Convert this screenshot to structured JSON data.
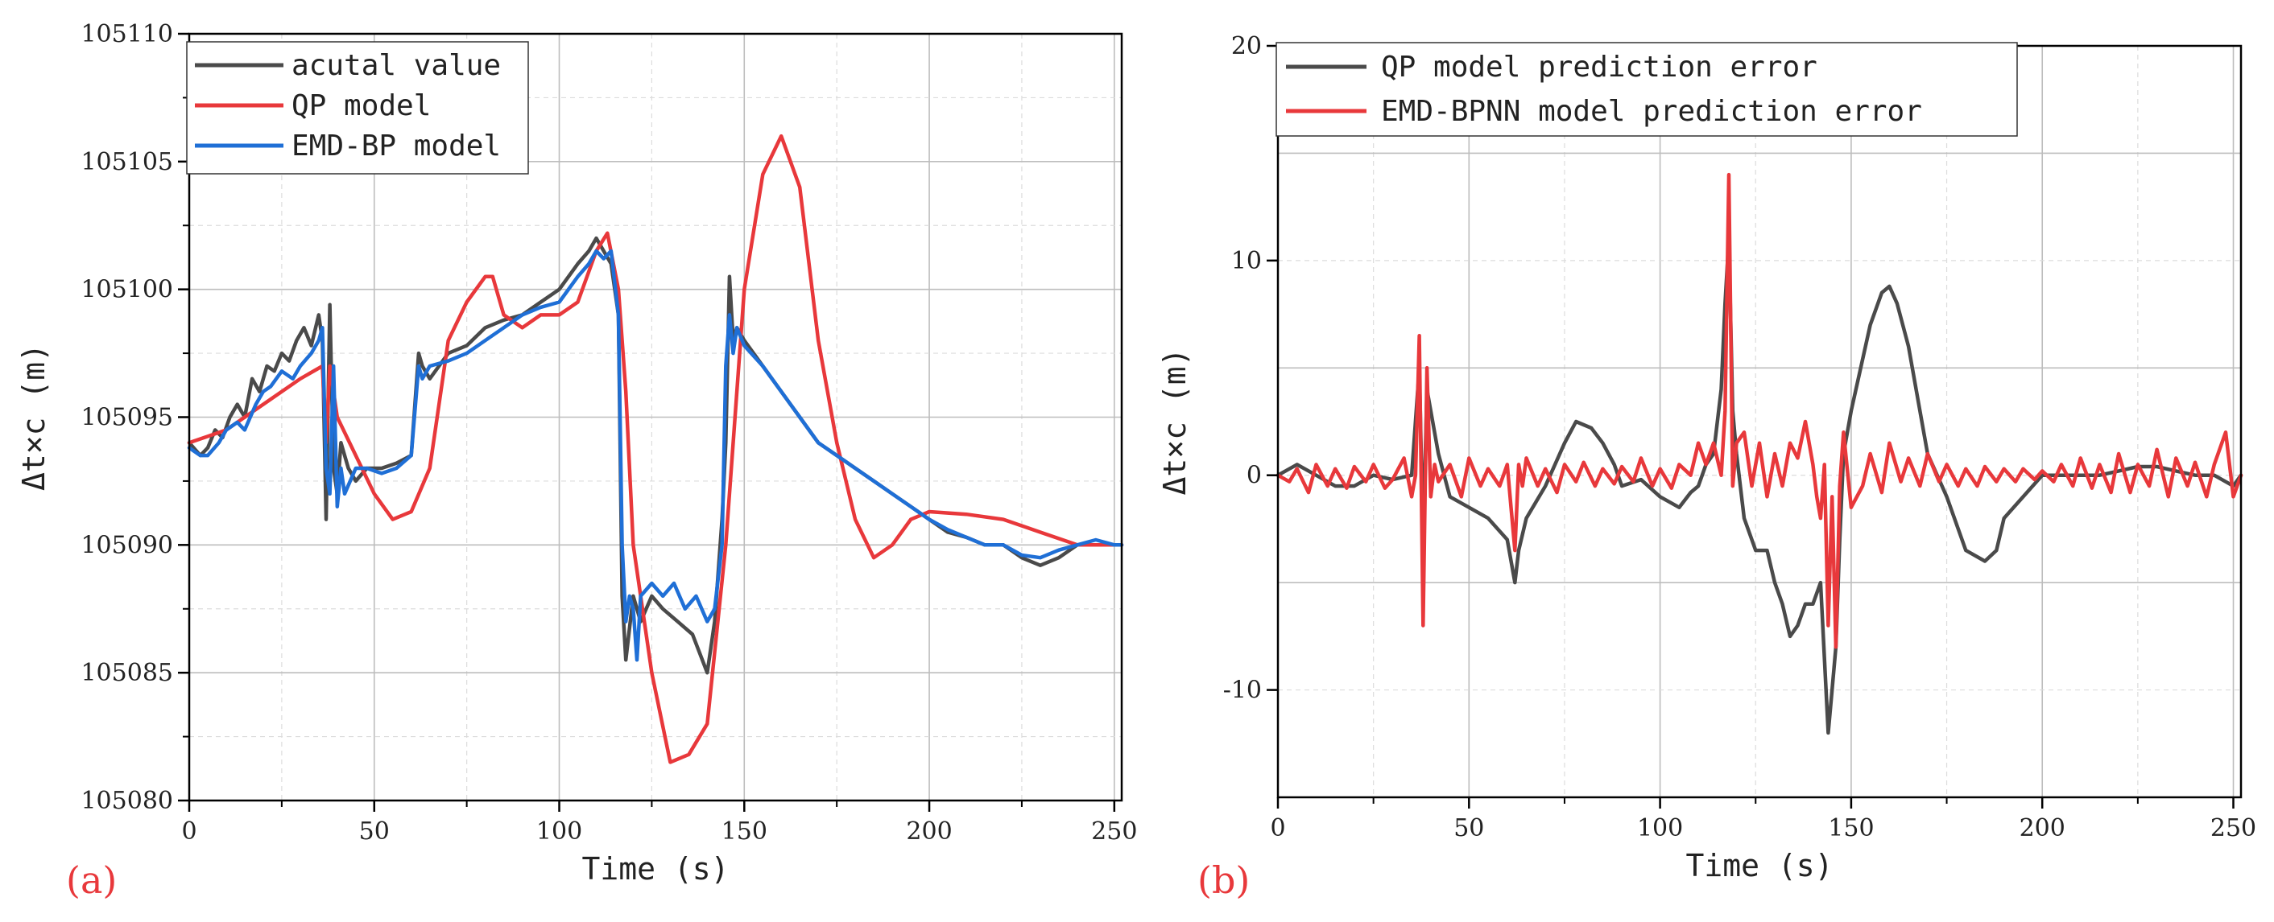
{
  "colors": {
    "actual": "#4a4a4a",
    "qp": "#e8383b",
    "emd": "#1f6fd6",
    "panel_label": "#e8383b"
  },
  "chart_data": [
    {
      "type": "line",
      "panel_label": "(a)",
      "xlabel": "Time (s)",
      "ylabel": "Δt×c (m)",
      "xlim": [
        0,
        252
      ],
      "ylim": [
        105080,
        105110
      ],
      "xticks": [
        0,
        50,
        100,
        150,
        200,
        250
      ],
      "xtick_labels": [
        "0",
        "50",
        "100",
        "150",
        "200",
        "250"
      ],
      "yticks": [
        105080,
        105085,
        105090,
        105095,
        105100,
        105105,
        105110
      ],
      "ytick_labels": [
        "105080",
        "105085",
        "105090",
        "105095",
        "105100",
        "105105",
        "105110"
      ],
      "grid": true,
      "legend": "top-left",
      "series": [
        {
          "name": "acutal value",
          "color_key": "actual",
          "x": [
            0,
            3,
            5,
            7,
            9,
            11,
            13,
            15,
            17,
            19,
            21,
            23,
            25,
            27,
            29,
            31,
            33,
            35,
            36,
            37,
            38,
            39,
            40,
            41,
            43,
            45,
            48,
            52,
            56,
            60,
            62,
            63,
            65,
            70,
            75,
            80,
            85,
            90,
            95,
            100,
            105,
            108,
            110,
            112,
            114,
            116,
            117,
            118,
            120,
            122,
            125,
            128,
            132,
            136,
            140,
            142,
            144,
            145,
            146,
            147,
            148,
            150,
            155,
            160,
            165,
            170,
            175,
            180,
            185,
            190,
            195,
            200,
            205,
            210,
            215,
            220,
            225,
            230,
            235,
            240,
            245,
            250,
            252
          ],
          "values": [
            105094,
            105093.5,
            105093.8,
            105094.5,
            105094.2,
            105095,
            105095.5,
            105095,
            105096.5,
            105096,
            105097,
            105096.8,
            105097.5,
            105097.2,
            105098,
            105098.5,
            105097.8,
            105099,
            105098,
            105091,
            105099.4,
            105093,
            105092,
            105094,
            105093,
            105092.5,
            105093,
            105093,
            105093.2,
            105093.5,
            105097.5,
            105097,
            105096.5,
            105097.5,
            105097.8,
            105098.5,
            105098.8,
            105099,
            105099.5,
            105100,
            105101,
            105101.5,
            105102,
            105101.5,
            105101,
            105099,
            105088,
            105085.5,
            105088,
            105087,
            105088,
            105087.5,
            105087,
            105086.5,
            105085,
            105087,
            105091,
            105094,
            105100.5,
            105098,
            105098.5,
            105098,
            105097,
            105096,
            105095,
            105094,
            105093.5,
            105093,
            105092.5,
            105092,
            105091.5,
            105091,
            105090.5,
            105090.3,
            105090,
            105090,
            105089.5,
            105089.2,
            105089.5,
            105090,
            105090,
            105090,
            105090
          ]
        },
        {
          "name": "QP model",
          "color_key": "qp",
          "x": [
            0,
            10,
            20,
            30,
            36,
            37,
            38,
            40,
            45,
            50,
            55,
            60,
            65,
            70,
            75,
            80,
            82,
            85,
            90,
            95,
            100,
            105,
            110,
            113,
            116,
            118,
            120,
            125,
            130,
            135,
            140,
            145,
            150,
            155,
            160,
            165,
            170,
            175,
            180,
            185,
            190,
            195,
            200,
            210,
            220,
            230,
            240,
            250,
            252
          ],
          "values": [
            105094,
            105094.5,
            105095.5,
            105096.5,
            105097,
            105094,
            105097,
            105095,
            105093.5,
            105092,
            105091,
            105091.3,
            105093,
            105098,
            105099.5,
            105100.5,
            105100.5,
            105099,
            105098.5,
            105099,
            105099,
            105099.5,
            105101.5,
            105102.2,
            105100,
            105096,
            105090,
            105085,
            105081.5,
            105081.8,
            105083,
            105090,
            105100,
            105104.5,
            105106,
            105104,
            105098,
            105094,
            105091,
            105089.5,
            105090,
            105091,
            105091.3,
            105091.2,
            105091,
            105090.5,
            105090,
            105090,
            105090
          ]
        },
        {
          "name": "EMD-BP model",
          "color_key": "emd",
          "x": [
            0,
            3,
            5,
            8,
            10,
            13,
            15,
            18,
            20,
            22,
            25,
            28,
            30,
            33,
            35,
            36,
            37,
            38,
            39,
            40,
            41,
            42,
            45,
            48,
            52,
            56,
            60,
            62,
            63,
            65,
            70,
            75,
            80,
            85,
            90,
            95,
            100,
            105,
            108,
            110,
            112,
            114,
            116,
            117,
            118,
            119,
            120,
            121,
            122,
            125,
            128,
            131,
            134,
            137,
            140,
            142,
            144,
            145,
            146,
            147,
            148,
            150,
            155,
            160,
            165,
            170,
            175,
            180,
            185,
            190,
            195,
            200,
            205,
            210,
            215,
            220,
            225,
            230,
            235,
            240,
            245,
            250,
            252
          ],
          "values": [
            105093.8,
            105093.5,
            105093.5,
            105094,
            105094.5,
            105094.8,
            105094.5,
            105095.5,
            105096,
            105096.2,
            105096.8,
            105096.5,
            105097,
            105097.5,
            105098,
            105098.5,
            105093,
            105092,
            105097,
            105091.5,
            105093,
            105092,
            105093,
            105093,
            105092.8,
            105093,
            105093.5,
            105097,
            105096.5,
            105097,
            105097.2,
            105097.5,
            105098,
            105098.5,
            105099,
            105099.3,
            105099.5,
            105100.5,
            105101,
            105101.5,
            105101.2,
            105101.5,
            105099,
            105090,
            105087,
            105088,
            105087.5,
            105085.5,
            105088,
            105088.5,
            105088,
            105088.5,
            105087.5,
            105088,
            105087,
            105087.5,
            105090,
            105097,
            105099,
            105097.5,
            105098.5,
            105097.8,
            105097,
            105096,
            105095,
            105094,
            105093.5,
            105093,
            105092.5,
            105092,
            105091.5,
            105091,
            105090.6,
            105090.3,
            105090,
            105090,
            105089.6,
            105089.5,
            105089.8,
            105090,
            105090.2,
            105090,
            105090
          ]
        }
      ]
    },
    {
      "type": "line",
      "panel_label": "(b)",
      "xlabel": "Time (s)",
      "ylabel": "Δt×c (m)",
      "xlim": [
        0,
        252
      ],
      "ylim": [
        -15,
        20
      ],
      "xticks": [
        0,
        50,
        100,
        150,
        200,
        250
      ],
      "xtick_labels": [
        "0",
        "50",
        "100",
        "150",
        "200",
        "250"
      ],
      "yticks": [
        -10,
        0,
        10,
        20
      ],
      "ytick_labels": [
        "-10",
        "0",
        "10",
        "20"
      ],
      "grid": true,
      "legend": "top",
      "series": [
        {
          "name": "QP model prediction error",
          "color_key": "actual",
          "x": [
            0,
            5,
            10,
            15,
            20,
            25,
            30,
            35,
            37,
            38,
            39,
            40,
            42,
            45,
            50,
            55,
            60,
            62,
            63,
            65,
            70,
            75,
            78,
            82,
            85,
            88,
            90,
            95,
            100,
            105,
            108,
            110,
            112,
            114,
            116,
            117,
            118,
            119,
            120,
            122,
            125,
            128,
            130,
            132,
            134,
            136,
            138,
            140,
            142,
            144,
            145,
            146,
            147,
            148,
            150,
            155,
            158,
            160,
            162,
            165,
            168,
            170,
            175,
            180,
            185,
            188,
            190,
            195,
            200,
            205,
            210,
            215,
            220,
            225,
            230,
            235,
            240,
            245,
            250,
            252
          ],
          "values": [
            0,
            0.5,
            0,
            -0.5,
            -0.5,
            0,
            -0.2,
            0,
            5,
            -3,
            4,
            3,
            1,
            -1,
            -1.5,
            -2,
            -3,
            -5,
            -3.5,
            -2,
            -0.5,
            1.5,
            2.5,
            2.2,
            1.5,
            0.5,
            -0.5,
            -0.2,
            -1,
            -1.5,
            -0.8,
            -0.5,
            0.5,
            1,
            4,
            8,
            11,
            3,
            1,
            -2,
            -3.5,
            -3.5,
            -5,
            -6,
            -7.5,
            -7,
            -6,
            -6,
            -5,
            -12,
            -10,
            -8,
            -3,
            1,
            3,
            7,
            8.5,
            8.8,
            8,
            6,
            3,
            1,
            -1,
            -3.5,
            -4,
            -3.5,
            -2,
            -1,
            0,
            0,
            0,
            0,
            0.2,
            0.4,
            0.4,
            0.2,
            0,
            0,
            -0.5,
            0
          ]
        },
        {
          "name": "EMD-BPNN model prediction error",
          "color_key": "qp",
          "x": [
            0,
            3,
            5,
            8,
            10,
            13,
            15,
            18,
            20,
            23,
            25,
            28,
            30,
            33,
            35,
            36,
            37,
            38,
            39,
            40,
            41,
            42,
            45,
            48,
            50,
            53,
            55,
            58,
            60,
            61,
            62,
            63,
            64,
            65,
            68,
            70,
            73,
            75,
            78,
            80,
            83,
            85,
            88,
            90,
            93,
            95,
            98,
            100,
            103,
            105,
            108,
            110,
            112,
            114,
            116,
            117,
            118,
            119,
            120,
            122,
            124,
            126,
            128,
            130,
            132,
            134,
            136,
            138,
            140,
            141,
            142,
            143,
            144,
            145,
            146,
            147,
            148,
            150,
            153,
            155,
            158,
            160,
            163,
            165,
            168,
            170,
            173,
            175,
            178,
            180,
            183,
            185,
            188,
            190,
            193,
            195,
            198,
            200,
            203,
            205,
            208,
            210,
            213,
            215,
            218,
            220,
            223,
            225,
            228,
            230,
            233,
            235,
            238,
            240,
            243,
            245,
            248,
            250,
            252
          ],
          "values": [
            0,
            -0.3,
            0.3,
            -0.8,
            0.5,
            -0.5,
            0.3,
            -0.6,
            0.4,
            -0.3,
            0.5,
            -0.6,
            -0.2,
            0.8,
            -1,
            0,
            6.5,
            -7,
            5,
            -1,
            0.5,
            -0.3,
            0.5,
            -1,
            0.8,
            -0.5,
            0.3,
            -0.5,
            0.5,
            -1.5,
            -3.5,
            0.5,
            -0.5,
            0.8,
            -0.5,
            0.3,
            -0.8,
            0.5,
            -0.3,
            0.6,
            -0.5,
            0.3,
            -0.4,
            0.4,
            -0.3,
            0.8,
            -0.5,
            0.3,
            -0.6,
            0.5,
            0,
            1.5,
            0.5,
            1.5,
            0,
            3,
            14,
            -0.5,
            1.5,
            2,
            -0.5,
            1.5,
            -1,
            1,
            -0.5,
            1.5,
            0.8,
            2.5,
            0.5,
            -1,
            -2,
            0.5,
            -7,
            -1,
            -8,
            -0.5,
            2,
            -1.5,
            -0.5,
            1,
            -0.8,
            1.5,
            -0.3,
            0.8,
            -0.5,
            1,
            -0.3,
            0.5,
            -0.5,
            0.3,
            -0.5,
            0.4,
            -0.3,
            0.3,
            -0.3,
            0.3,
            -0.2,
            0.2,
            -0.3,
            0.5,
            -0.5,
            0.8,
            -0.6,
            0.5,
            -0.8,
            1,
            -0.8,
            0.5,
            -0.5,
            1.2,
            -1,
            0.8,
            -0.5,
            0.6,
            -1,
            0.5,
            2,
            -1,
            0
          ]
        }
      ]
    }
  ]
}
